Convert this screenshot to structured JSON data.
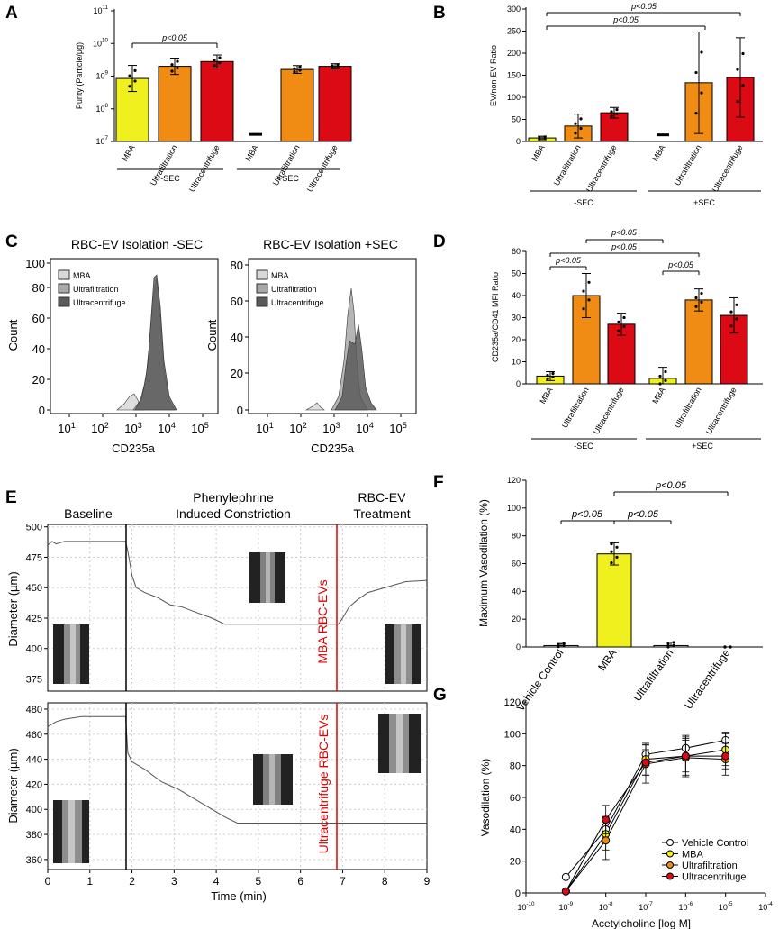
{
  "colors": {
    "mba": "#f0f01e",
    "uf": "#f08c14",
    "uc": "#dc0a14",
    "red": "#e00000",
    "gray1": "#d8d8d8",
    "gray2": "#a8a8a8",
    "gray3": "#5a5a5a"
  },
  "panel_labels": {
    "A": "A",
    "B": "B",
    "C": "C",
    "D": "D",
    "E": "E",
    "F": "F",
    "G": "G"
  },
  "chart_data": [
    {
      "id": "A",
      "type": "bar",
      "ylabel": "Purity (Particle/µg)",
      "yscale": "log",
      "ylim": [
        10000000.0,
        100000000000.0
      ],
      "yticks": [
        {
          "base": "10",
          "exp": "7"
        },
        {
          "base": "10",
          "exp": "8"
        },
        {
          "base": "10",
          "exp": "9"
        },
        {
          "base": "10",
          "exp": "10"
        },
        {
          "base": "10",
          "exp": "11"
        }
      ],
      "categories": [
        "MBA",
        "Ultrafiltration",
        "Ultracentrifuge",
        "MBA",
        "Ultrafiltration",
        "Ultracentrifuge"
      ],
      "values": [
        850000000.0,
        2000000000.0,
        2800000000.0,
        null,
        1600000000.0,
        2000000000.0
      ],
      "err": [
        0.4,
        0.25,
        0.2,
        0,
        0.12,
        0.08
      ],
      "groups": [
        "-SEC",
        "+SEC"
      ],
      "sig": [
        "p<0.05"
      ]
    },
    {
      "id": "B",
      "type": "bar",
      "ylabel": "EV/non-EV Ratio",
      "ylim": [
        0,
        300
      ],
      "yticks": [
        "0",
        "50",
        "100",
        "150",
        "200",
        "250",
        "300"
      ],
      "categories": [
        "MBA",
        "Ultrafiltration",
        "Ultracentrifuge",
        "MBA",
        "Ultrafiltration",
        "Ultracentrifuge"
      ],
      "values": [
        8,
        35,
        65,
        null,
        133,
        145
      ],
      "err": [
        4,
        27,
        12,
        0,
        115,
        90
      ],
      "groups": [
        "-SEC",
        "+SEC"
      ],
      "sig": [
        "p<0.05",
        "p<0.05"
      ]
    },
    {
      "id": "C1",
      "type": "histogram",
      "title": "RBC-EV Isolation -SEC",
      "xlabel": "CD235a",
      "ylabel": "Count",
      "yticks": [
        "0",
        "20",
        "40",
        "60",
        "80",
        "100"
      ],
      "xticks": [
        {
          "base": "10",
          "exp": "1"
        },
        {
          "base": "10",
          "exp": "2"
        },
        {
          "base": "10",
          "exp": "3"
        },
        {
          "base": "10",
          "exp": "4"
        },
        {
          "base": "10",
          "exp": "5"
        }
      ],
      "legend": [
        "MBA",
        "Ultrafiltration",
        "Ultracentrifuge"
      ]
    },
    {
      "id": "C2",
      "type": "histogram",
      "title": "RBC-EV Isolation +SEC",
      "xlabel": "CD235a",
      "ylabel": "Count",
      "yticks": [
        "0",
        "20",
        "40",
        "60",
        "80"
      ],
      "xticks": [
        {
          "base": "10",
          "exp": "1"
        },
        {
          "base": "10",
          "exp": "2"
        },
        {
          "base": "10",
          "exp": "3"
        },
        {
          "base": "10",
          "exp": "4"
        },
        {
          "base": "10",
          "exp": "5"
        }
      ],
      "legend": [
        "MBA",
        "Ultrafiltration",
        "Ultracentrifuge"
      ]
    },
    {
      "id": "D",
      "type": "bar",
      "ylabel": "CD235a/CD41 MFI Ratio",
      "ylim": [
        0,
        60
      ],
      "yticks": [
        "0",
        "10",
        "20",
        "30",
        "40",
        "50",
        "60"
      ],
      "categories": [
        "MBA",
        "Ultrafiltration",
        "Ultracentrifuge",
        "MBA",
        "Ultrafiltration",
        "Ultracentrifuge"
      ],
      "values": [
        3.5,
        40,
        27,
        2.5,
        38,
        31
      ],
      "err": [
        2,
        10,
        5,
        5,
        5,
        8
      ],
      "groups": [
        "-SEC",
        "+SEC"
      ],
      "sig": [
        "p<0.05",
        "p<0.05",
        "p<0.05",
        "p<0.05"
      ]
    },
    {
      "id": "E",
      "type": "line",
      "xlabel": "Time (min)",
      "ylabel": "Diameter (µm)",
      "phases": [
        "Baseline",
        "Phenylephrine",
        "Induced Constriction",
        "RBC-EV",
        "Treatment"
      ],
      "xticks": [
        "0",
        "1",
        "2",
        "3",
        "4",
        "5",
        "6",
        "7",
        "8",
        "9"
      ],
      "top": {
        "yticks": [
          "375",
          "400",
          "425",
          "450",
          "475",
          "500"
        ],
        "ylim": [
          365,
          502
        ],
        "marker": "MBA RBC-EVs"
      },
      "bottom": {
        "yticks": [
          "360",
          "380",
          "400",
          "420",
          "440",
          "460",
          "480"
        ],
        "ylim": [
          352,
          485
        ],
        "marker": "Ultracentrifuge RBC-EVs"
      }
    },
    {
      "id": "F",
      "type": "bar",
      "ylabel": "Maximum Vasodilation (%)",
      "ylim": [
        0,
        120
      ],
      "yticks": [
        "0",
        "20",
        "40",
        "60",
        "80",
        "100",
        "120"
      ],
      "categories": [
        "Vehicle Control",
        "MBA",
        "Ultrafiltration",
        "Ultracentrifuge"
      ],
      "values": [
        1,
        67,
        1,
        0
      ],
      "err": [
        1.5,
        8,
        2.5,
        0
      ],
      "sig": [
        "p<0.05",
        "p<0.05",
        "p<0.05"
      ]
    },
    {
      "id": "G",
      "type": "line",
      "xlabel": "Acetylcholine [log M]",
      "ylabel": "Vasodilation (%)",
      "ylim": [
        0,
        120
      ],
      "yticks": [
        "0",
        "20",
        "40",
        "60",
        "80",
        "100",
        "120"
      ],
      "xticks": [
        {
          "base": "10",
          "exp": "-10"
        },
        {
          "base": "10",
          "exp": "-9"
        },
        {
          "base": "10",
          "exp": "-8"
        },
        {
          "base": "10",
          "exp": "-7"
        },
        {
          "base": "10",
          "exp": "-6"
        },
        {
          "base": "10",
          "exp": "-5"
        },
        {
          "base": "10",
          "exp": "-4"
        }
      ],
      "x": [
        -9,
        -8,
        -7,
        -6,
        -5
      ],
      "series": [
        {
          "name": "Vehicle Control",
          "values": [
            10,
            40,
            87,
            91,
            96
          ],
          "err": [
            0,
            8,
            6,
            8,
            5
          ]
        },
        {
          "name": "MBA",
          "values": [
            1,
            37,
            84,
            86,
            90
          ],
          "err": [
            0,
            10,
            10,
            12,
            10
          ]
        },
        {
          "name": "Ultrafiltration",
          "values": [
            1,
            33,
            81,
            85,
            84
          ],
          "err": [
            0,
            12,
            12,
            12,
            10
          ]
        },
        {
          "name": "Ultracentrifuge",
          "values": [
            1,
            46,
            82,
            86,
            86
          ],
          "err": [
            0,
            9,
            8,
            10,
            8
          ]
        }
      ]
    }
  ]
}
